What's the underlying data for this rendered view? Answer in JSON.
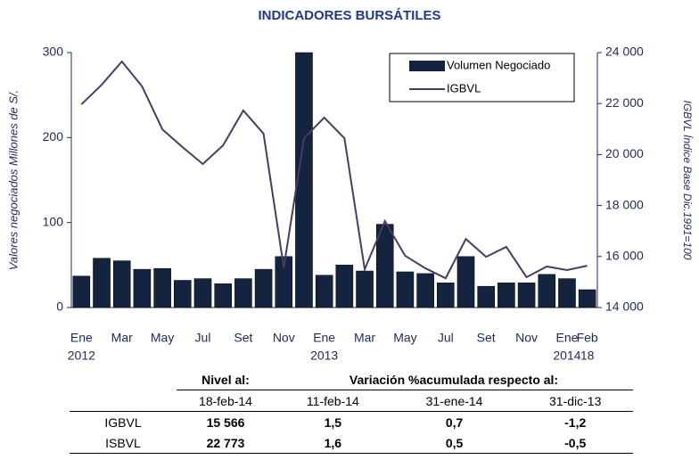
{
  "chart_data": {
    "type": "bar_line",
    "title": "INDICADORES BURSÁTILES",
    "y_label": "Valores negociados Millones de S/.",
    "y2_label": "IGBVL Índice Base Dic.1991=100",
    "categories": [
      "Ene",
      null,
      "Mar",
      null,
      "May",
      null,
      "Jul",
      null,
      "Set",
      null,
      "Nov",
      null,
      "Ene",
      null,
      "Mar",
      null,
      "May",
      null,
      "Jul",
      null,
      "Set",
      null,
      "Nov",
      null,
      "Ene",
      "Feb"
    ],
    "category_sublabels": [
      "2012",
      null,
      null,
      null,
      null,
      null,
      null,
      null,
      null,
      null,
      null,
      null,
      "2013",
      null,
      null,
      null,
      null,
      null,
      null,
      null,
      null,
      null,
      null,
      null,
      "2014",
      "18"
    ],
    "series": [
      {
        "name": "Volumen Negociado",
        "type": "bar",
        "color": "#14243f",
        "values": [
          37,
          58,
          55,
          45,
          46,
          32,
          34,
          28,
          34,
          45,
          60,
          300,
          38,
          50,
          43,
          98,
          42,
          40,
          29,
          60,
          25,
          29,
          29,
          39,
          34,
          21
        ]
      },
      {
        "name": "IGBVL",
        "type": "line",
        "axis": "y2",
        "color": "#4a3b63",
        "values": [
          21970,
          22740,
          23650,
          22670,
          20990,
          20290,
          19630,
          20360,
          21730,
          20820,
          15570,
          20640,
          21450,
          20640,
          15500,
          17390,
          16030,
          15540,
          15150,
          16690,
          15990,
          16380,
          15190,
          15610,
          15470,
          15640
        ]
      }
    ],
    "ylim": [
      0,
      300
    ],
    "yticks": [
      0,
      100,
      200,
      300
    ],
    "y2lim": [
      14000,
      24000
    ],
    "y2ticks": [
      {
        "value": 14000,
        "label": "14 000"
      },
      {
        "value": 16000,
        "label": "16 000"
      },
      {
        "value": 18000,
        "label": "18 000"
      },
      {
        "value": 20000,
        "label": "20 000"
      },
      {
        "value": 22000,
        "label": "22 000"
      },
      {
        "value": 24000,
        "label": "24 000"
      }
    ],
    "legend": "top-right"
  },
  "table": {
    "header": [
      "Nivel al:",
      "Variación %acumulada respecto al:"
    ],
    "dates": [
      "18-feb-14",
      "11-feb-14",
      "31-ene-14",
      "31-dic-13"
    ],
    "rows": [
      [
        "IGBVL",
        "15 566",
        "1,5",
        "0,7",
        "-1,2"
      ],
      [
        "ISBVL",
        "22 773",
        "1,6",
        "0,5",
        "-0,5"
      ]
    ]
  }
}
